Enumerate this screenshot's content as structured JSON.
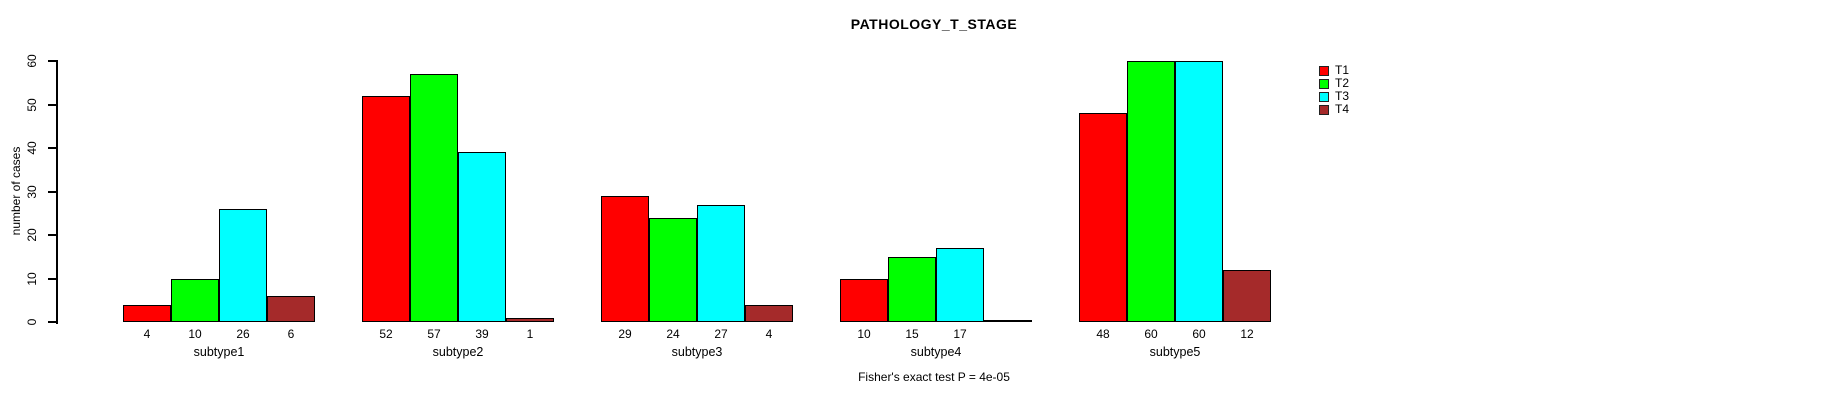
{
  "chart_data": {
    "type": "bar",
    "title": "PATHOLOGY_T_STAGE",
    "ylabel": "number of cases",
    "xlabel": "",
    "ylim": [
      0,
      60
    ],
    "yticks": [
      0,
      10,
      20,
      30,
      40,
      50,
      60
    ],
    "grid": false,
    "categories": [
      "subtype1",
      "subtype2",
      "subtype3",
      "subtype4",
      "subtype5"
    ],
    "series": [
      {
        "name": "T1",
        "color": "#FF0000",
        "values": [
          4,
          52,
          29,
          10,
          48
        ]
      },
      {
        "name": "T2",
        "color": "#00FF00",
        "values": [
          10,
          57,
          24,
          15,
          60
        ]
      },
      {
        "name": "T3",
        "color": "#00FFFF",
        "values": [
          26,
          39,
          27,
          17,
          60
        ]
      },
      {
        "name": "T4",
        "color": "#A52A2A",
        "values": [
          6,
          1,
          4,
          0,
          12
        ]
      }
    ],
    "bar_value_labels": [
      [
        "4",
        "52",
        "29",
        "10",
        "48"
      ],
      [
        "10",
        "57",
        "24",
        "15",
        "60"
      ],
      [
        "26",
        "39",
        "27",
        "17",
        "60"
      ],
      [
        "6",
        "1",
        "4",
        "",
        "12"
      ]
    ],
    "legend": {
      "position": "right",
      "entries": [
        "T1",
        "T2",
        "T3",
        "T4"
      ]
    },
    "annotation": "Fisher's exact test P = 4e-05"
  }
}
